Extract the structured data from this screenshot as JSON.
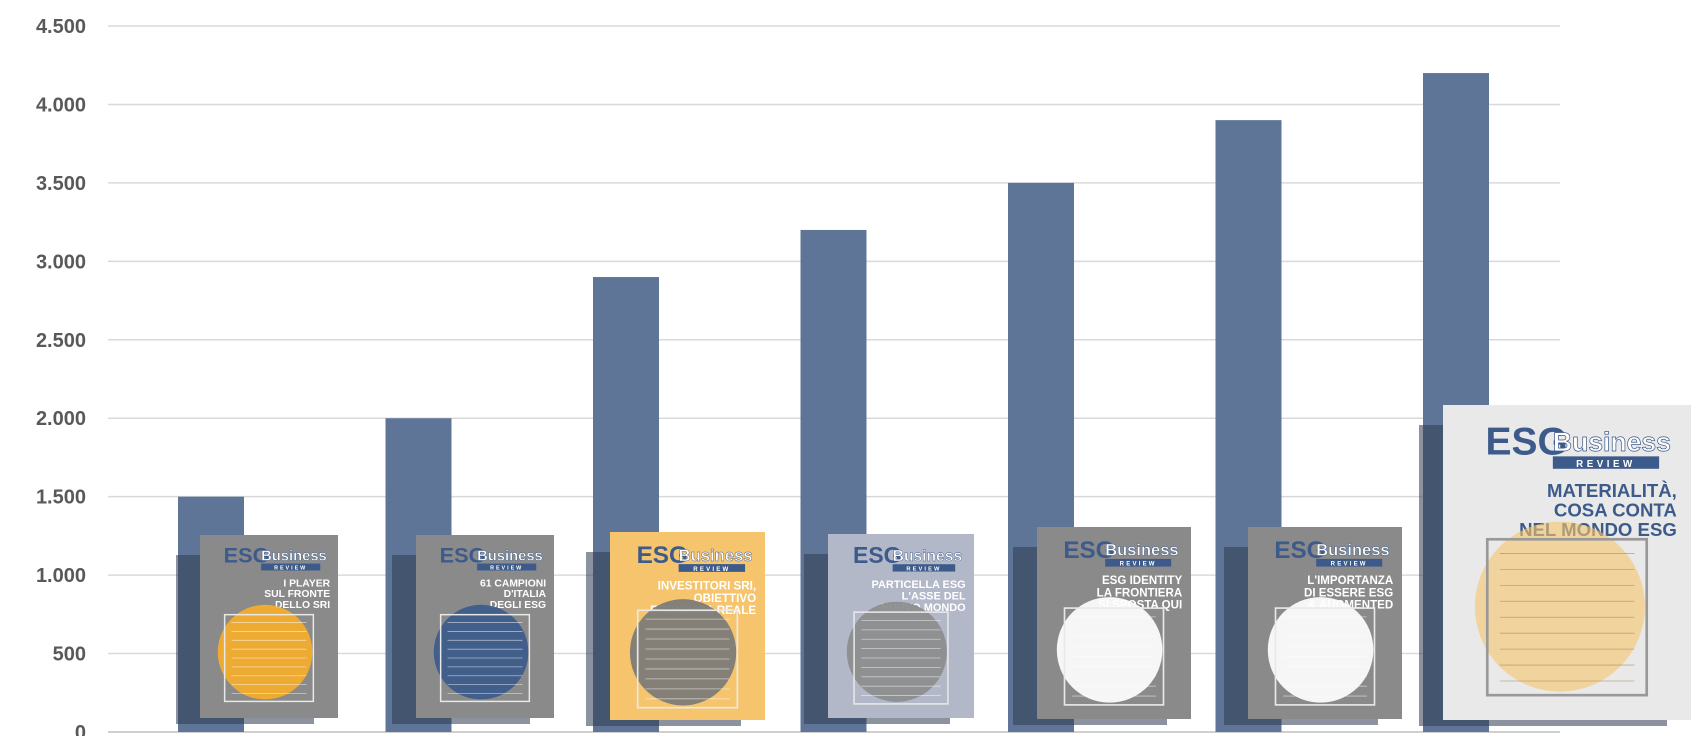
{
  "chart_data": {
    "type": "bar",
    "categories": [
      "",
      "",
      "",
      "",
      "",
      "",
      ""
    ],
    "values": [
      1500,
      2000,
      2900,
      3200,
      3500,
      3900,
      4200
    ],
    "ylim": [
      0,
      4500
    ],
    "yticks": [
      0,
      500,
      1000,
      1500,
      2000,
      2500,
      3000,
      3500,
      4000,
      4500
    ],
    "ytick_labels": [
      "0",
      "500",
      "1.000",
      "1.500",
      "2.000",
      "2.500",
      "3.000",
      "3.500",
      "4.000",
      "4.500"
    ],
    "grid": true,
    "bar_color": "#5f7597",
    "title": "",
    "xlabel": "",
    "ylabel": ""
  },
  "covers": [
    {
      "brand_a": "ESG",
      "brand_b": "Business",
      "brand_sub": "REVIEW",
      "headline": [
        "I PLAYER",
        "SUL FRONTE",
        "DELLO SRI"
      ],
      "bg": "#8a8a8a",
      "circle": "#f6ae2d"
    },
    {
      "brand_a": "ESG",
      "brand_b": "Business",
      "brand_sub": "REVIEW",
      "headline": [
        "61 CAMPIONI",
        "D'ITALIA",
        "DEGLI ESG"
      ],
      "bg": "#8a8a8a",
      "circle": "#3c5a8a"
    },
    {
      "brand_a": "ESG",
      "brand_b": "Business",
      "brand_sub": "REVIEW",
      "headline": [
        "INVESTITORI SRI,",
        "OBIETTIVO",
        "ECONOMIA REALE"
      ],
      "bg": "#f6c46d",
      "circle": "#7a7a7a"
    },
    {
      "brand_a": "ESG",
      "brand_b": "Business",
      "brand_sub": "REVIEW",
      "headline": [
        "PARTICELLA ESG",
        "L'ASSE DEL",
        "NUOVO MONDO"
      ],
      "bg": "#b3b8c9",
      "circle": "#8c8c8c"
    },
    {
      "brand_a": "ESG",
      "brand_b": "Business",
      "brand_sub": "REVIEW",
      "headline": [
        "ESG IDENTITY",
        "LA FRONTIERA",
        "SI SPOSTA QUI"
      ],
      "bg": "#8a8a8a",
      "circle": "#ffffff"
    },
    {
      "brand_a": "ESG",
      "brand_b": "Business",
      "brand_sub": "REVIEW",
      "headline": [
        "L'IMPORTANZA",
        "DI ESSERE ESG",
        "& AUGMENTED"
      ],
      "bg": "#8a8a8a",
      "circle": "#ffffff"
    },
    {
      "brand_a": "ESG",
      "brand_b": "Business",
      "brand_sub": "REVIEW",
      "headline": [
        "MATERIALITÀ,",
        "COSA CONTA",
        "NEL MONDO ESG"
      ],
      "bg": "#e9e9e9",
      "circle": "#f6c46d"
    }
  ],
  "colors": {
    "grid": "#d9d9d9",
    "axis": "#bfbfbf",
    "brand_blue": "#3c5a8a",
    "accent_orange": "#f6ae2d"
  }
}
